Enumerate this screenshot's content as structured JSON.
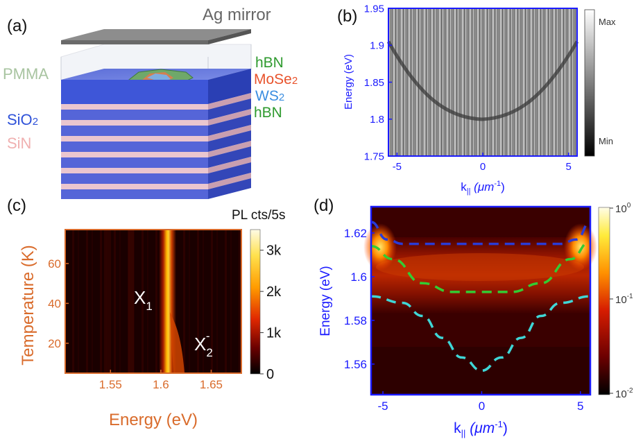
{
  "panel_labels": {
    "a": "(a)",
    "b": "(b)",
    "c": "(c)",
    "d": "(d)"
  },
  "panel_a": {
    "mirror": "Ag mirror",
    "pmma": "PMMA",
    "sio2": "SiO",
    "sio2_sub": "2",
    "sin": "SiN",
    "hbn_top": "hBN",
    "mose2": "MoSe",
    "mose2_sub": "2",
    "ws2": "WS",
    "ws2_sub": "2",
    "hbn_bottom": "hBN",
    "colors": {
      "pmma": "#a8c4a0",
      "sio2": "#2f52d9",
      "sin": "#f2b8b8",
      "hbn": "#2e9a2e",
      "mose2": "#e8532c",
      "ws2": "#3a8de0"
    }
  },
  "panel_b": {
    "ylabel": "Energy (eV)",
    "xlabel_main": "k",
    "xlabel_sub": "||",
    "xlabel_unit": " (μm",
    "xlabel_exp": "-1",
    "xlabel_close": ")",
    "colorbar_max": "Max",
    "colorbar_min": "Min"
  },
  "panel_c": {
    "colorbar_title": "PL cts/5s",
    "ylabel": "Temperature (K)",
    "xlabel": "Energy (eV)",
    "label_x1_main": "X",
    "label_x1_sub": "1",
    "label_x2_main": "X",
    "label_x2_sub": "2",
    "label_x2_sup": "-"
  },
  "panel_d": {
    "ylabel": "Energy (eV)",
    "xlabel_main": "k",
    "xlabel_sub": "||",
    "xlabel_unit": " (μm",
    "xlabel_exp": "-1",
    "xlabel_close": ")"
  },
  "chart_data": [
    {
      "type": "heatmap",
      "panel": "b",
      "ylabel": "Energy (eV)",
      "xlabel": "k|| (μm-1)",
      "xlim": [
        -5.5,
        5.5
      ],
      "ylim": [
        1.75,
        1.95
      ],
      "xticks": [
        -5,
        0,
        5
      ],
      "xtick_labels": [
        "-5",
        "0",
        "5"
      ],
      "yticks": [
        1.75,
        1.8,
        1.85,
        1.9,
        1.95
      ],
      "ytick_labels": [
        "1.75",
        "1.8",
        "1.85",
        "1.9",
        "1.95"
      ],
      "colorbar": {
        "labels": [
          "Max",
          "Min"
        ],
        "colormap": "gray"
      },
      "features": {
        "dispersion_k": [
          -5.5,
          -4,
          -2,
          0,
          2,
          4,
          5.5
        ],
        "dispersion_E": [
          1.91,
          1.84,
          1.795,
          1.782,
          1.795,
          1.84,
          1.91
        ]
      },
      "axis_color": "#1a1aff"
    },
    {
      "type": "heatmap",
      "panel": "c",
      "ylabel": "Temperature (K)",
      "xlabel": "Energy (eV)",
      "xlim": [
        1.505,
        1.68
      ],
      "ylim": [
        5,
        77
      ],
      "xticks": [
        1.55,
        1.6,
        1.65
      ],
      "xtick_labels": [
        "1.55",
        "1.6",
        "1.65"
      ],
      "yticks": [
        20,
        40,
        60
      ],
      "ytick_labels": [
        "20",
        "40",
        "60"
      ],
      "colorbar": {
        "title": "PL cts/5s",
        "ticks": [
          0,
          1000,
          2000,
          3000
        ],
        "tick_labels": [
          "0",
          "1k",
          "2k",
          "3k"
        ],
        "max": 3500,
        "colormap": "hot"
      },
      "annotations": [
        "X1",
        "X2-"
      ],
      "features": {
        "X1_energy": 1.607,
        "X2_energy": 1.618
      },
      "axis_color": "#d96b2b"
    },
    {
      "type": "heatmap",
      "panel": "d",
      "ylabel": "Energy (eV)",
      "xlabel": "k|| (μm-1)",
      "xlim": [
        -5.6,
        5.5
      ],
      "ylim": [
        1.546,
        1.632
      ],
      "xticks": [
        -5,
        0,
        5
      ],
      "xtick_labels": [
        "-5",
        "0",
        "5"
      ],
      "yticks": [
        1.56,
        1.58,
        1.6,
        1.62
      ],
      "ytick_labels": [
        "1.56",
        "1.58",
        "1.6",
        "1.62"
      ],
      "colorbar": {
        "ticks": [
          "10^0",
          "10^-1",
          "10^-2"
        ],
        "scale": "log",
        "colormap": "hot"
      },
      "series": [
        {
          "color": "#2a3bd6",
          "x": [
            -5.6,
            -4.8,
            -4,
            0,
            4,
            4.8,
            5.5
          ],
          "y": [
            1.625,
            1.617,
            1.615,
            1.615,
            1.615,
            1.617,
            1.625
          ]
        },
        {
          "color": "#33cc33",
          "x": [
            -5.6,
            -4.5,
            -3,
            -1.5,
            0,
            1.5,
            3,
            4.5,
            5.5
          ],
          "y": [
            1.614,
            1.608,
            1.597,
            1.593,
            1.593,
            1.593,
            1.597,
            1.608,
            1.616
          ]
        },
        {
          "color": "#3fd6d6",
          "x": [
            -5.6,
            -4,
            -3,
            -2,
            -1,
            0,
            1,
            2,
            3,
            4,
            5.5
          ],
          "y": [
            1.591,
            1.588,
            1.582,
            1.572,
            1.563,
            1.557,
            1.563,
            1.572,
            1.582,
            1.588,
            1.591
          ]
        }
      ],
      "axis_color": "#1a1aff"
    }
  ]
}
